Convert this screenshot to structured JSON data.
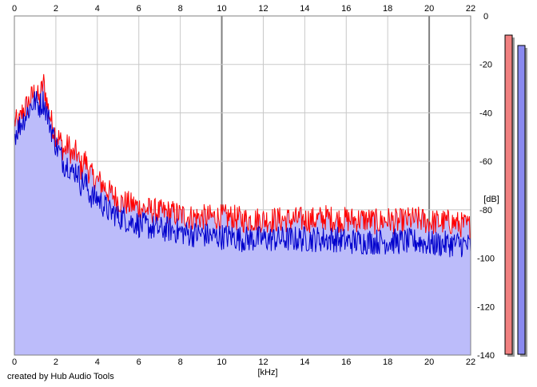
{
  "credit": "created by Hub Audio Tools",
  "colors": {
    "background": "#ffffff",
    "plot_background": "#ffffff",
    "grid": "#c8c8c8",
    "grid_major": "#808080",
    "fill": "#bcbcfa",
    "left_channel": "#ff0000",
    "right_channel": "#0000cc",
    "meter_left": "#f08080",
    "meter_right": "#8a8af0"
  },
  "chart_data": {
    "type": "line",
    "title": "",
    "xlabel": "[kHz]",
    "ylabel": "[dB]",
    "xlim": [
      0,
      22
    ],
    "ylim": [
      -140,
      0
    ],
    "x_ticks": [
      "0",
      "2",
      "4",
      "6",
      "8",
      "10",
      "12",
      "14",
      "16",
      "18",
      "20",
      "22"
    ],
    "y_ticks": [
      "0",
      "-20",
      "-40",
      "-60",
      "-80",
      "-100",
      "-120",
      "-140"
    ],
    "grid": true,
    "legend": "none",
    "x": [
      0,
      0.2,
      0.4,
      0.6,
      0.8,
      1.0,
      1.2,
      1.4,
      1.6,
      1.8,
      2.0,
      2.2,
      2.4,
      2.6,
      2.8,
      3.0,
      3.2,
      3.4,
      3.6,
      3.8,
      4.0,
      4.2,
      4.4,
      4.6,
      4.8,
      5.0,
      5.2,
      5.4,
      5.6,
      5.8,
      6.0,
      6.5,
      7.0,
      7.5,
      8.0,
      8.5,
      9.0,
      9.5,
      10.0,
      10.5,
      11.0,
      11.5,
      12.0,
      12.5,
      13.0,
      13.5,
      14.0,
      14.5,
      15.0,
      15.5,
      16.0,
      16.5,
      17.0,
      17.5,
      18.0,
      18.5,
      19.0,
      19.5,
      20.0,
      20.5,
      21.0,
      21.5,
      22.0
    ],
    "series": [
      {
        "color": "#ff0000",
        "values": [
          -42,
          -44,
          -38,
          -36,
          -33,
          -30,
          -34,
          -26,
          -36,
          -43,
          -48,
          -50,
          -55,
          -52,
          -57,
          -55,
          -62,
          -58,
          -63,
          -66,
          -67,
          -68,
          -70,
          -72,
          -73,
          -75,
          -76,
          -76,
          -77,
          -77,
          -78,
          -79,
          -80,
          -80,
          -81,
          -82,
          -82,
          -82,
          -82,
          -82,
          -83,
          -83,
          -83,
          -83,
          -83,
          -83,
          -83,
          -83,
          -82,
          -83,
          -83,
          -83,
          -83,
          -84,
          -83,
          -84,
          -83,
          -83,
          -84,
          -84,
          -84,
          -85,
          -86
        ]
      },
      {
        "color": "#0000cc",
        "values": [
          -48,
          -45,
          -42,
          -39,
          -36,
          -34,
          -36,
          -34,
          -40,
          -46,
          -52,
          -56,
          -60,
          -60,
          -64,
          -62,
          -68,
          -67,
          -72,
          -74,
          -74,
          -76,
          -78,
          -80,
          -80,
          -82,
          -82,
          -83,
          -84,
          -84,
          -85,
          -86,
          -87,
          -87,
          -88,
          -89,
          -89,
          -90,
          -90,
          -90,
          -91,
          -91,
          -91,
          -91,
          -91,
          -91,
          -91,
          -91,
          -91,
          -91,
          -92,
          -92,
          -92,
          -92,
          -92,
          -92,
          -92,
          -92,
          -93,
          -93,
          -93,
          -93,
          -94
        ]
      }
    ],
    "level_meters": [
      {
        "channel": "left",
        "color": "#f08080"
      },
      {
        "channel": "right",
        "color": "#8a8af0"
      }
    ]
  }
}
